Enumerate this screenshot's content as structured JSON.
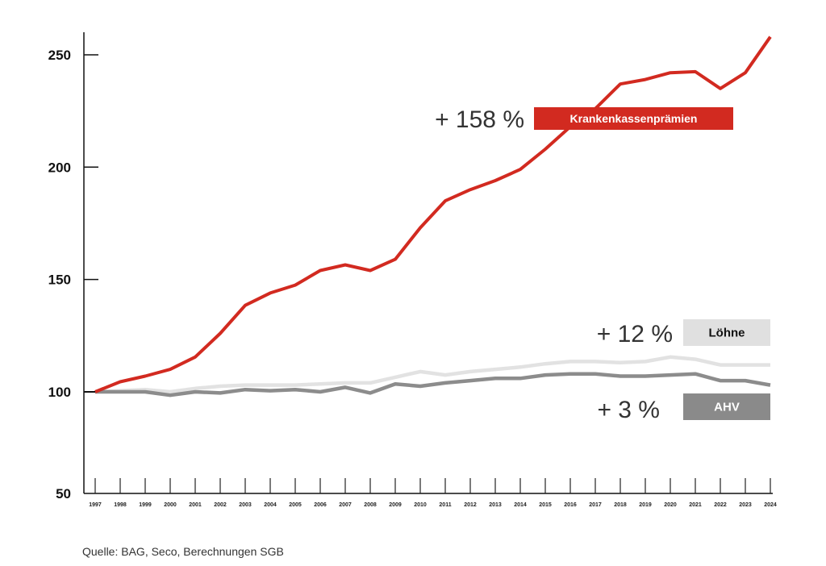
{
  "chart_data": {
    "type": "line",
    "title": "",
    "xlabel": "",
    "ylabel": "",
    "ylim": [
      50,
      260
    ],
    "yticks": [
      50,
      100,
      150,
      200,
      250
    ],
    "x": [
      1997,
      1998,
      1999,
      2000,
      2001,
      2002,
      2003,
      2004,
      2005,
      2006,
      2007,
      2008,
      2009,
      2010,
      2011,
      2012,
      2013,
      2014,
      2015,
      2016,
      2017,
      2018,
      2019,
      2020,
      2021,
      2022,
      2023,
      2024
    ],
    "grid": false,
    "series": [
      {
        "name": "Krankenkassenprämien",
        "change": "+ 158 %",
        "color": "#d22a20",
        "label_color": "#d22a20",
        "label_text_color": "#ffffff",
        "values": [
          100,
          104.5,
          107,
          110,
          115.5,
          126,
          138.5,
          144,
          147.5,
          154,
          156.5,
          154,
          159,
          173,
          185,
          190,
          194,
          199,
          208,
          218,
          226,
          237,
          239,
          242,
          242.5,
          235,
          242,
          258
        ]
      },
      {
        "name": "Löhne",
        "change": "+ 12 %",
        "color": "#e2e2e2",
        "label_color": "#e0e0e0",
        "label_text_color": "#111111",
        "values": [
          100,
          100.5,
          101,
          100,
          101.5,
          102.5,
          103,
          103,
          103,
          103.5,
          104,
          104,
          106.5,
          109,
          107.5,
          109,
          110,
          111,
          112.5,
          113.5,
          113.5,
          113,
          113.5,
          115.5,
          114.5,
          112,
          112,
          112
        ]
      },
      {
        "name": "AHV",
        "change": "+ 3 %",
        "color": "#8c8c8c",
        "label_color": "#8a8a8a",
        "label_text_color": "#ffffff",
        "values": [
          100,
          100,
          100,
          98.5,
          100,
          99.5,
          101,
          100.5,
          101,
          100,
          102,
          99.5,
          103.5,
          102.5,
          104,
          105,
          106,
          106,
          107.5,
          108,
          108,
          107,
          107,
          107.5,
          108,
          105,
          105,
          103
        ]
      }
    ]
  },
  "source": "Quelle: BAG, Seco, Berechnungen SGB"
}
